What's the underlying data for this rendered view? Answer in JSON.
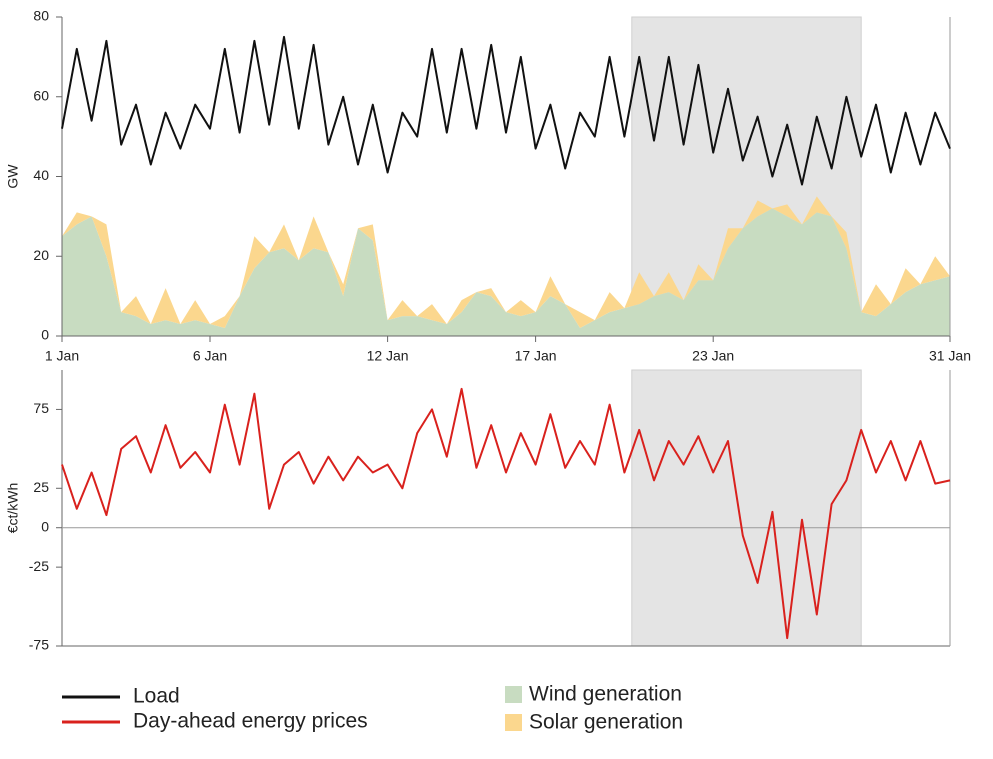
{
  "chart_data": [
    {
      "type": "combo",
      "y_label": "GW",
      "x": [
        1,
        1.5,
        2,
        2.5,
        3,
        3.5,
        4,
        4.5,
        5,
        5.5,
        6,
        6.5,
        7,
        7.5,
        8,
        8.5,
        9,
        9.5,
        10,
        10.5,
        11,
        11.5,
        12,
        12.5,
        13,
        13.5,
        14,
        14.5,
        15,
        15.5,
        16,
        16.5,
        17,
        17.5,
        18,
        18.5,
        19,
        19.5,
        20,
        20.5,
        21,
        21.5,
        22,
        22.5,
        23,
        23.5,
        24,
        24.5,
        25,
        25.5,
        26,
        26.5,
        27,
        27.5,
        28,
        28.5,
        29,
        29.5,
        30,
        30.5,
        31
      ],
      "xlim": [
        1,
        31
      ],
      "xticks": [
        {
          "value": 1,
          "label": "1 Jan"
        },
        {
          "value": 6,
          "label": "6 Jan"
        },
        {
          "value": 12,
          "label": "12 Jan"
        },
        {
          "value": 17,
          "label": "17 Jan"
        },
        {
          "value": 23,
          "label": "23 Jan"
        },
        {
          "value": 31,
          "label": "31 Jan"
        }
      ],
      "ylim": [
        0,
        80
      ],
      "yticks": [
        0,
        20,
        40,
        60,
        80
      ],
      "highlight": [
        20.25,
        28
      ],
      "series": [
        {
          "name": "Wind generation",
          "type": "area",
          "color": "#c8dcc1",
          "values": [
            25,
            28,
            30,
            20,
            6,
            5,
            3,
            4,
            3,
            4,
            3,
            2,
            10,
            17,
            21,
            22,
            19,
            22,
            21,
            10,
            27,
            24,
            4,
            5,
            5,
            4,
            3,
            6,
            11,
            10,
            6,
            5,
            6,
            10,
            8,
            2,
            4,
            6,
            7,
            8,
            10,
            11,
            9,
            14,
            14,
            22,
            27,
            30,
            32,
            30,
            28,
            31,
            30,
            22,
            6,
            5,
            8,
            11,
            13,
            14,
            15
          ]
        },
        {
          "name": "Solar generation",
          "type": "area",
          "color": "#fbd78e",
          "values": [
            0,
            3,
            0,
            8,
            0,
            5,
            0,
            8,
            0,
            5,
            0,
            3,
            0,
            8,
            0,
            6,
            0,
            8,
            0,
            3,
            0,
            4,
            0,
            4,
            0,
            4,
            0,
            3,
            0,
            2,
            0,
            4,
            0,
            5,
            0,
            4,
            0,
            5,
            0,
            8,
            0,
            5,
            0,
            4,
            0,
            5,
            0,
            4,
            0,
            3,
            0,
            4,
            0,
            4,
            0,
            8,
            0,
            6,
            0,
            6,
            0
          ]
        },
        {
          "name": "Load",
          "type": "line",
          "color": "#111111",
          "values": [
            52,
            72,
            54,
            74,
            48,
            58,
            43,
            56,
            47,
            58,
            52,
            72,
            51,
            74,
            53,
            75,
            52,
            73,
            48,
            60,
            43,
            58,
            41,
            56,
            50,
            72,
            51,
            72,
            52,
            73,
            51,
            70,
            47,
            58,
            42,
            56,
            50,
            70,
            50,
            70,
            49,
            70,
            48,
            68,
            46,
            62,
            44,
            55,
            40,
            53,
            38,
            55,
            42,
            60,
            45,
            58,
            41,
            56,
            43,
            56,
            47
          ]
        }
      ]
    },
    {
      "type": "line",
      "y_label": "€ct/kWh",
      "x": [
        1,
        1.5,
        2,
        2.5,
        3,
        3.5,
        4,
        4.5,
        5,
        5.5,
        6,
        6.5,
        7,
        7.5,
        8,
        8.5,
        9,
        9.5,
        10,
        10.5,
        11,
        11.5,
        12,
        12.5,
        13,
        13.5,
        14,
        14.5,
        15,
        15.5,
        16,
        16.5,
        17,
        17.5,
        18,
        18.5,
        19,
        19.5,
        20,
        20.5,
        21,
        21.5,
        22,
        22.5,
        23,
        23.5,
        24,
        24.5,
        25,
        25.5,
        26,
        26.5,
        27,
        27.5,
        28,
        28.5,
        29,
        29.5,
        30,
        30.5,
        31
      ],
      "xlim": [
        1,
        31
      ],
      "ylim": [
        -75,
        100
      ],
      "yticks": [
        -75,
        -25,
        0,
        25,
        75
      ],
      "zero_line": true,
      "highlight": [
        20.25,
        28
      ],
      "series": [
        {
          "name": "Day-ahead energy prices",
          "type": "line",
          "color": "#d9211d",
          "values": [
            40,
            12,
            35,
            8,
            50,
            58,
            35,
            65,
            38,
            48,
            35,
            78,
            40,
            85,
            12,
            40,
            48,
            28,
            45,
            30,
            45,
            35,
            40,
            25,
            60,
            75,
            45,
            88,
            38,
            65,
            35,
            60,
            40,
            72,
            38,
            55,
            40,
            78,
            35,
            62,
            30,
            55,
            40,
            58,
            35,
            55,
            -5,
            -35,
            10,
            -70,
            5,
            -55,
            15,
            30,
            62,
            35,
            55,
            30,
            55,
            28,
            30
          ]
        }
      ]
    }
  ]
}
